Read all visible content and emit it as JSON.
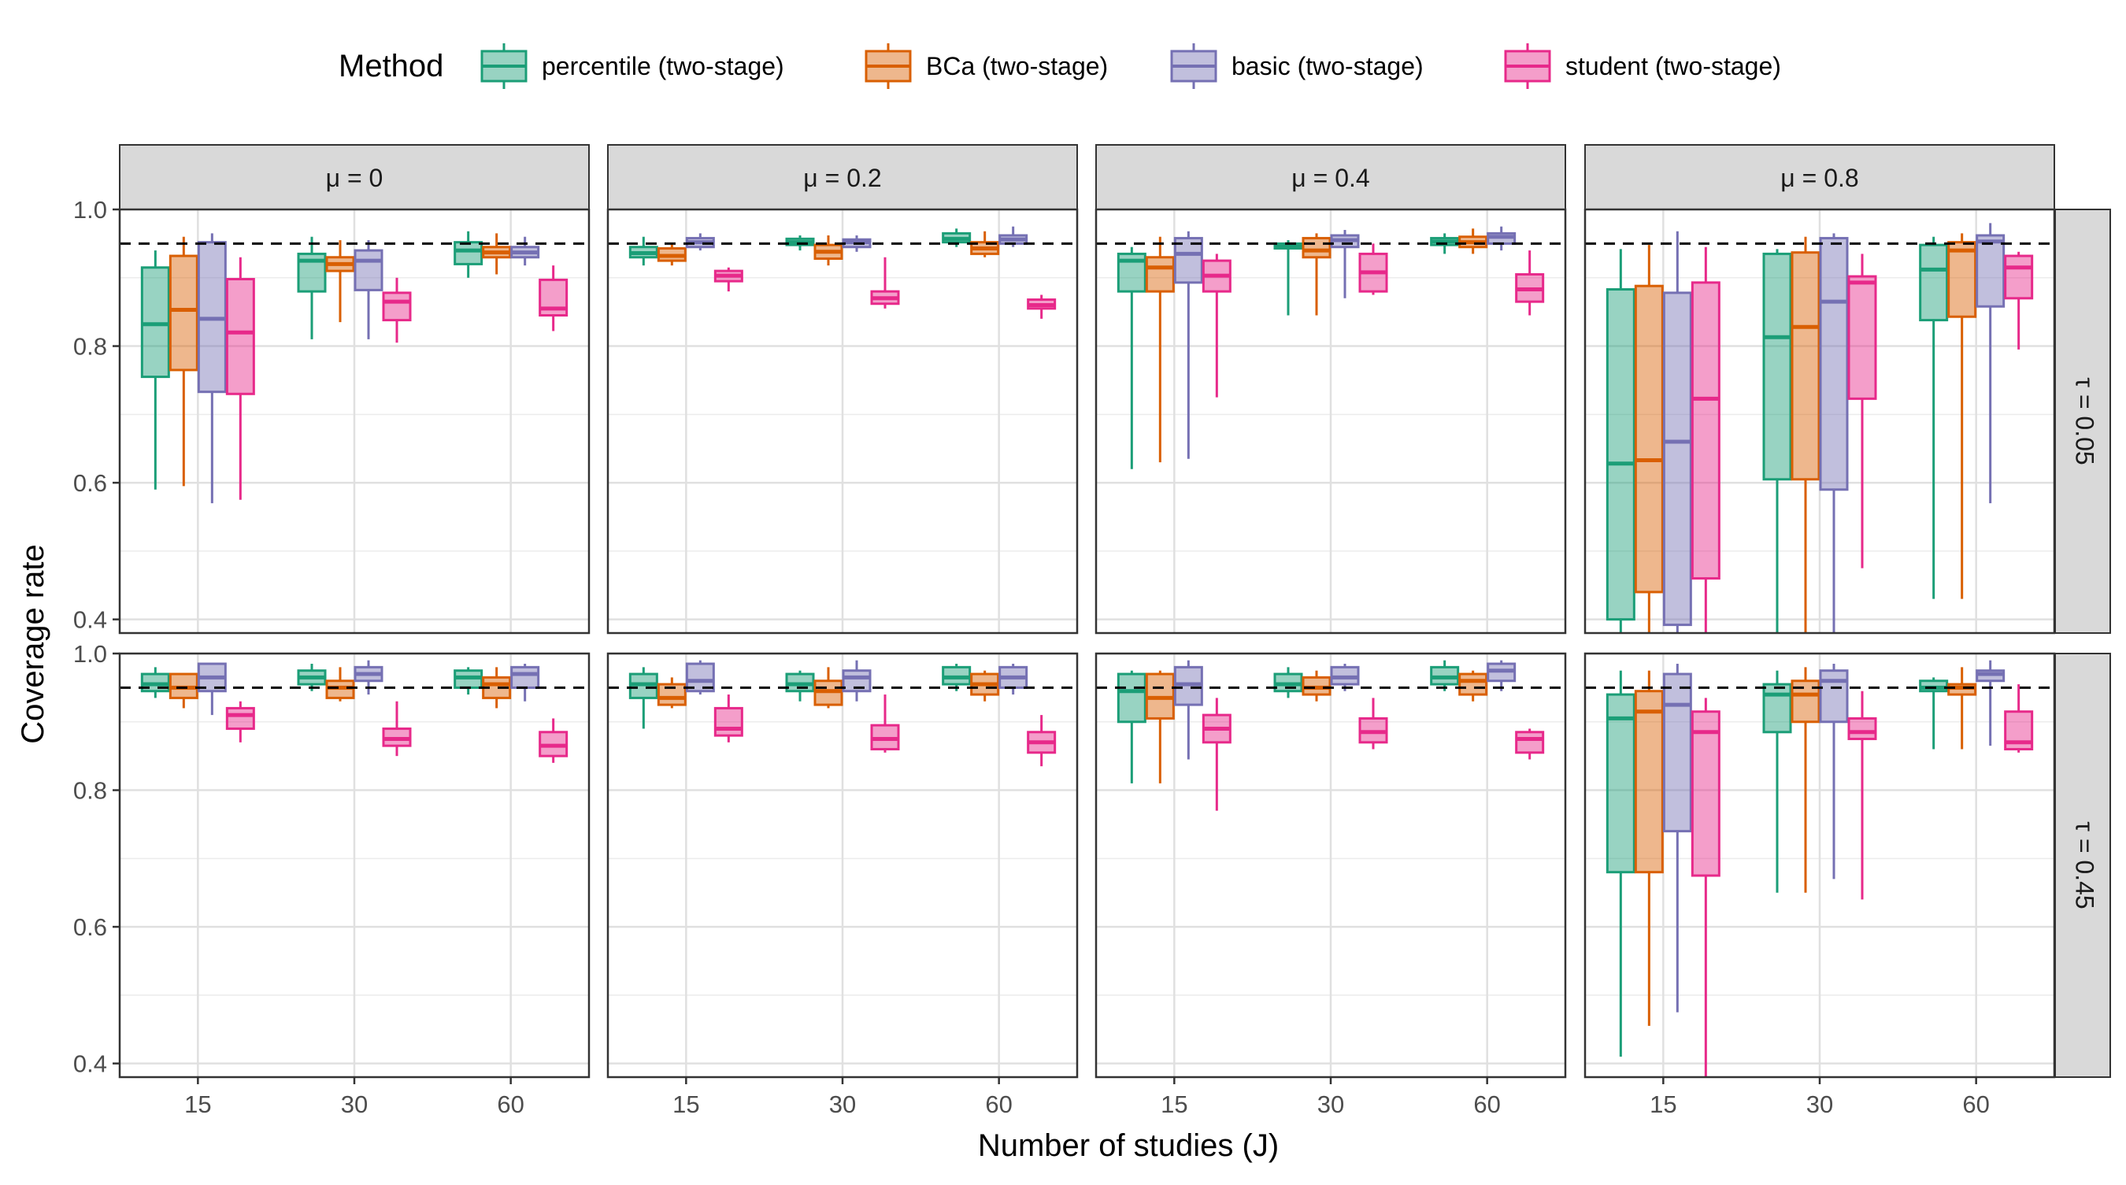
{
  "chart_data": {
    "type": "boxplot",
    "legend": {
      "title": "Method",
      "placement": "top"
    },
    "xlabel": "Number of studies (J)",
    "ylabel": "Coverage rate",
    "x_categories": [
      "15",
      "30",
      "60"
    ],
    "ylim": [
      0.38,
      1.0
    ],
    "yticks": [
      "0.4",
      "0.6",
      "0.8",
      "1.0"
    ],
    "reference_line": 0.95,
    "methods": [
      {
        "name": "percentile (two-stage)",
        "color": "#1b9e77"
      },
      {
        "name": "BCa (two-stage)",
        "color": "#d95f02"
      },
      {
        "name": "basic (two-stage)",
        "color": "#7570b3"
      },
      {
        "name": "student (two-stage)",
        "color": "#e7298a"
      }
    ],
    "col_strips": [
      "μ = 0",
      "μ = 0.2",
      "μ = 0.4",
      "μ = 0.8"
    ],
    "row_strips": [
      "τ = 0.05",
      "τ = 0.45"
    ],
    "panels": [
      [
        [
          [
            [
              0.59,
              0.755,
              0.832,
              0.915,
              0.94
            ],
            [
              0.595,
              0.765,
              0.853,
              0.932,
              0.96
            ],
            [
              0.57,
              0.733,
              0.84,
              0.952,
              0.965
            ],
            [
              0.575,
              0.73,
              0.82,
              0.898,
              0.93
            ]
          ],
          [
            [
              0.81,
              0.88,
              0.925,
              0.935,
              0.96
            ],
            [
              0.835,
              0.91,
              0.92,
              0.93,
              0.955
            ],
            [
              0.81,
              0.882,
              0.925,
              0.94,
              0.955
            ],
            [
              0.805,
              0.838,
              0.865,
              0.878,
              0.9
            ]
          ],
          [
            [
              0.9,
              0.92,
              0.94,
              0.952,
              0.968
            ],
            [
              0.905,
              0.93,
              0.937,
              0.945,
              0.965
            ],
            [
              0.918,
              0.93,
              0.937,
              0.945,
              0.96
            ],
            [
              0.822,
              0.845,
              0.855,
              0.897,
              0.918
            ]
          ]
        ],
        [
          [
            [
              0.918,
              0.93,
              0.936,
              0.945,
              0.96
            ],
            [
              0.918,
              0.925,
              0.932,
              0.943,
              0.95
            ],
            [
              0.94,
              0.945,
              0.952,
              0.958,
              0.965
            ],
            [
              0.88,
              0.895,
              0.903,
              0.91,
              0.915
            ]
          ],
          [
            [
              0.94,
              0.948,
              0.952,
              0.957,
              0.962
            ],
            [
              0.918,
              0.928,
              0.938,
              0.948,
              0.962
            ],
            [
              0.938,
              0.945,
              0.952,
              0.956,
              0.962
            ],
            [
              0.855,
              0.862,
              0.87,
              0.88,
              0.93
            ]
          ],
          [
            [
              0.945,
              0.952,
              0.957,
              0.965,
              0.972
            ],
            [
              0.93,
              0.935,
              0.943,
              0.952,
              0.968
            ],
            [
              0.945,
              0.95,
              0.956,
              0.962,
              0.975
            ],
            [
              0.84,
              0.855,
              0.86,
              0.868,
              0.875
            ]
          ]
        ],
        [
          [
            [
              0.62,
              0.88,
              0.925,
              0.935,
              0.945
            ],
            [
              0.63,
              0.88,
              0.915,
              0.93,
              0.96
            ],
            [
              0.635,
              0.893,
              0.935,
              0.958,
              0.968
            ],
            [
              0.725,
              0.88,
              0.903,
              0.925,
              0.935
            ]
          ],
          [
            [
              0.845,
              0.943,
              0.947,
              0.95,
              0.955
            ],
            [
              0.845,
              0.93,
              0.94,
              0.958,
              0.965
            ],
            [
              0.87,
              0.945,
              0.955,
              0.962,
              0.97
            ],
            [
              0.875,
              0.88,
              0.908,
              0.935,
              0.95
            ]
          ],
          [
            [
              0.935,
              0.948,
              0.953,
              0.958,
              0.965
            ],
            [
              0.935,
              0.945,
              0.952,
              0.96,
              0.972
            ],
            [
              0.94,
              0.95,
              0.96,
              0.965,
              0.975
            ],
            [
              0.845,
              0.865,
              0.883,
              0.905,
              0.94
            ]
          ]
        ],
        [
          [
            [
              0.38,
              0.4,
              0.628,
              0.883,
              0.942
            ],
            [
              0.38,
              0.44,
              0.633,
              0.888,
              0.948
            ],
            [
              0.38,
              0.392,
              0.66,
              0.878,
              0.968
            ],
            [
              0.38,
              0.46,
              0.723,
              0.893,
              0.945
            ]
          ],
          [
            [
              0.38,
              0.605,
              0.813,
              0.935,
              0.942
            ],
            [
              0.38,
              0.605,
              0.828,
              0.937,
              0.96
            ],
            [
              0.38,
              0.59,
              0.865,
              0.958,
              0.965
            ],
            [
              0.475,
              0.723,
              0.893,
              0.902,
              0.935
            ]
          ],
          [
            [
              0.43,
              0.838,
              0.912,
              0.948,
              0.96
            ],
            [
              0.43,
              0.843,
              0.94,
              0.952,
              0.965
            ],
            [
              0.57,
              0.858,
              0.953,
              0.962,
              0.98
            ],
            [
              0.795,
              0.87,
              0.915,
              0.932,
              0.938
            ]
          ]
        ]
      ],
      [
        [
          [
            [
              0.935,
              0.945,
              0.955,
              0.97,
              0.98
            ],
            [
              0.92,
              0.935,
              0.95,
              0.97,
              0.97
            ],
            [
              0.91,
              0.945,
              0.965,
              0.985,
              0.985
            ],
            [
              0.87,
              0.89,
              0.91,
              0.92,
              0.93
            ]
          ],
          [
            [
              0.945,
              0.955,
              0.965,
              0.975,
              0.985
            ],
            [
              0.93,
              0.935,
              0.95,
              0.96,
              0.98
            ],
            [
              0.94,
              0.96,
              0.97,
              0.98,
              0.99
            ],
            [
              0.85,
              0.865,
              0.875,
              0.89,
              0.93
            ]
          ],
          [
            [
              0.94,
              0.95,
              0.965,
              0.975,
              0.98
            ],
            [
              0.92,
              0.935,
              0.955,
              0.965,
              0.98
            ],
            [
              0.93,
              0.95,
              0.97,
              0.98,
              0.985
            ],
            [
              0.84,
              0.85,
              0.865,
              0.885,
              0.905
            ]
          ]
        ],
        [
          [
            [
              0.89,
              0.935,
              0.955,
              0.97,
              0.98
            ],
            [
              0.92,
              0.925,
              0.935,
              0.955,
              0.965
            ],
            [
              0.94,
              0.945,
              0.96,
              0.985,
              0.99
            ],
            [
              0.87,
              0.88,
              0.89,
              0.92,
              0.94
            ]
          ],
          [
            [
              0.93,
              0.945,
              0.955,
              0.97,
              0.975
            ],
            [
              0.92,
              0.925,
              0.945,
              0.96,
              0.98
            ],
            [
              0.93,
              0.945,
              0.965,
              0.975,
              0.99
            ],
            [
              0.855,
              0.86,
              0.875,
              0.895,
              0.94
            ]
          ],
          [
            [
              0.945,
              0.955,
              0.965,
              0.98,
              0.985
            ],
            [
              0.93,
              0.94,
              0.955,
              0.97,
              0.975
            ],
            [
              0.94,
              0.95,
              0.965,
              0.98,
              0.985
            ],
            [
              0.835,
              0.855,
              0.87,
              0.885,
              0.91
            ]
          ]
        ],
        [
          [
            [
              0.81,
              0.9,
              0.945,
              0.97,
              0.975
            ],
            [
              0.81,
              0.905,
              0.935,
              0.97,
              0.975
            ],
            [
              0.845,
              0.925,
              0.955,
              0.98,
              0.99
            ],
            [
              0.77,
              0.87,
              0.89,
              0.91,
              0.935
            ]
          ],
          [
            [
              0.935,
              0.945,
              0.955,
              0.97,
              0.98
            ],
            [
              0.93,
              0.94,
              0.95,
              0.965,
              0.975
            ],
            [
              0.945,
              0.955,
              0.965,
              0.98,
              0.985
            ],
            [
              0.86,
              0.87,
              0.885,
              0.905,
              0.935
            ]
          ],
          [
            [
              0.945,
              0.955,
              0.965,
              0.98,
              0.99
            ],
            [
              0.93,
              0.94,
              0.96,
              0.97,
              0.975
            ],
            [
              0.945,
              0.96,
              0.975,
              0.985,
              0.99
            ],
            [
              0.845,
              0.855,
              0.875,
              0.885,
              0.89
            ]
          ]
        ],
        [
          [
            [
              0.41,
              0.68,
              0.905,
              0.94,
              0.975
            ],
            [
              0.455,
              0.68,
              0.915,
              0.945,
              0.975
            ],
            [
              0.475,
              0.74,
              0.925,
              0.97,
              0.985
            ],
            [
              0.38,
              0.675,
              0.885,
              0.915,
              0.935
            ]
          ],
          [
            [
              0.65,
              0.885,
              0.94,
              0.955,
              0.975
            ],
            [
              0.65,
              0.9,
              0.94,
              0.96,
              0.98
            ],
            [
              0.67,
              0.9,
              0.96,
              0.975,
              0.985
            ],
            [
              0.64,
              0.875,
              0.885,
              0.905,
              0.945
            ]
          ],
          [
            [
              0.86,
              0.945,
              0.95,
              0.96,
              0.965
            ],
            [
              0.86,
              0.94,
              0.95,
              0.955,
              0.98
            ],
            [
              0.865,
              0.96,
              0.97,
              0.975,
              0.99
            ],
            [
              0.855,
              0.86,
              0.87,
              0.915,
              0.955
            ]
          ]
        ]
      ]
    ]
  }
}
